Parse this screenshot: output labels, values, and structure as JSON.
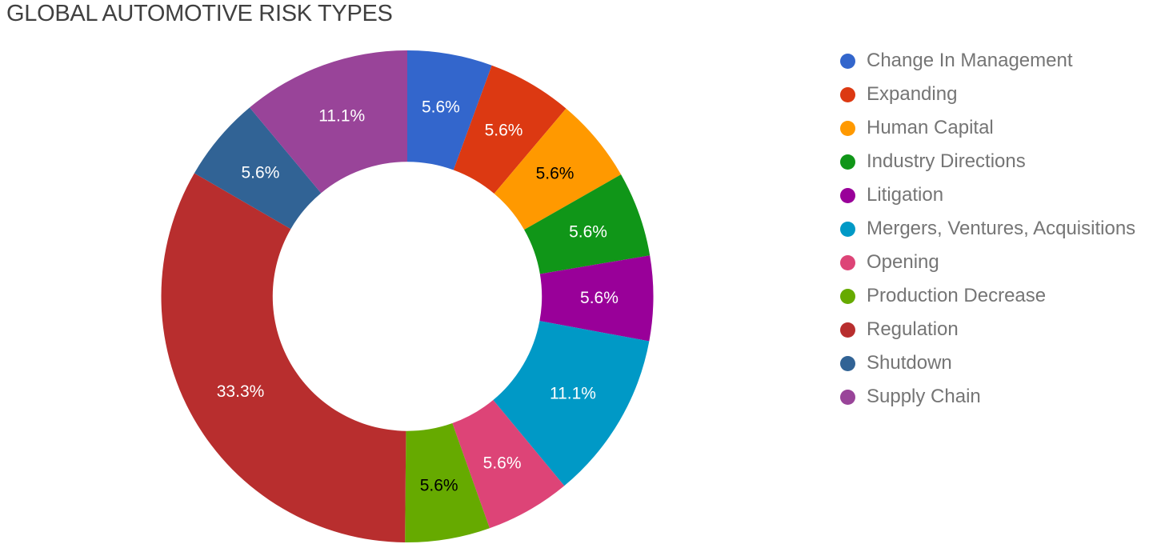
{
  "chart_data": {
    "type": "pie",
    "title": "GLOBAL AUTOMOTIVE RISK TYPES",
    "subtype": "donut",
    "donut_hole_ratio": 0.547,
    "start_angle_deg": 0,
    "direction": "clockwise",
    "legend_position": "right",
    "background_color": "#FFFFFF",
    "categories": [
      "Change In Management",
      "Expanding",
      "Human Capital",
      "Industry Directions",
      "Litigation",
      "Mergers, Ventures, Acquisitions",
      "Opening",
      "Production Decrease",
      "Regulation",
      "Shutdown",
      "Supply Chain"
    ],
    "values": [
      5.6,
      5.6,
      5.6,
      5.6,
      5.6,
      11.1,
      5.6,
      5.6,
      33.3,
      5.6,
      11.1
    ],
    "value_labels": [
      "5.6%",
      "5.6%",
      "5.6%",
      "5.6%",
      "5.6%",
      "11.1%",
      "5.6%",
      "5.6%",
      "33.3%",
      "5.6%",
      "11.1%"
    ],
    "colors": [
      "#3366CC",
      "#DC3912",
      "#FF9900",
      "#109618",
      "#990099",
      "#0099C6",
      "#DD4477",
      "#66AA00",
      "#B82E2E",
      "#316395",
      "#994499"
    ],
    "label_text_colors": [
      "#FFFFFF",
      "#FFFFFF",
      "#000000",
      "#FFFFFF",
      "#FFFFFF",
      "#FFFFFF",
      "#FFFFFF",
      "#000000",
      "#FFFFFF",
      "#FFFFFF",
      "#FFFFFF"
    ]
  }
}
